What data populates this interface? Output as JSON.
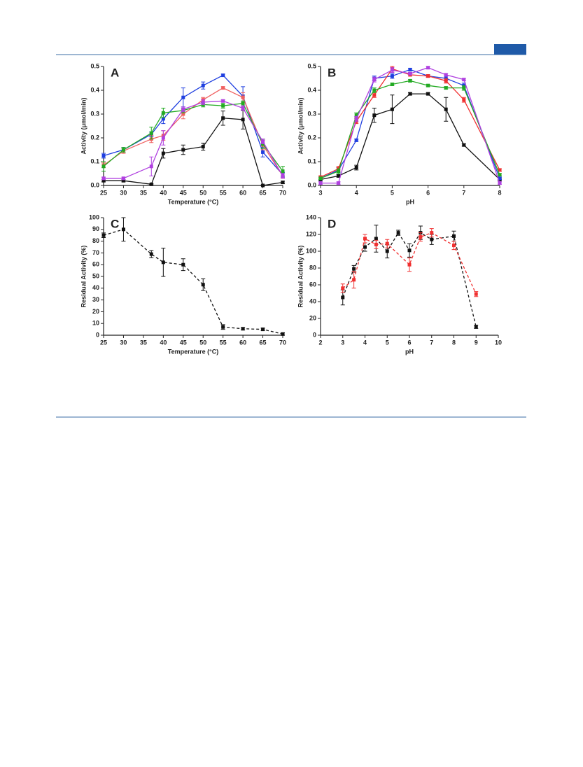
{
  "chart_data": [
    {
      "type": "line",
      "panel": "A",
      "xlabel": "Temperature (°C)",
      "ylabel": "Activity (μmol/min)",
      "xlim": [
        25,
        70
      ],
      "xticks": [
        25,
        30,
        35,
        40,
        45,
        50,
        55,
        60,
        65,
        70
      ],
      "ylim": [
        0,
        0.5
      ],
      "yticks": [
        {
          "value": 0,
          "label": "0.0"
        },
        0.1,
        0.2,
        0.3,
        0.4,
        0.5
      ],
      "linestyle": "solid",
      "x": [
        25,
        30,
        37,
        40,
        45,
        50,
        55,
        60,
        65,
        70
      ],
      "series": [
        {
          "color": "#111111",
          "values": [
            0.02,
            0.02,
            0.005,
            0.135,
            0.15,
            0.163,
            0.283,
            0.277,
            0.0,
            0.013
          ],
          "errors": [
            0.005,
            0.005,
            0.002,
            0.02,
            0.02,
            0.015,
            0.03,
            0.04,
            0.002,
            0.005
          ]
        },
        {
          "color": "#1f3fe0",
          "values": [
            0.125,
            0.15,
            0.215,
            0.28,
            0.37,
            0.42,
            0.463,
            0.375,
            0.14,
            0.045
          ],
          "errors": [
            0.01,
            0.01,
            0.01,
            0.02,
            0.04,
            0.015,
            0.005,
            0.04,
            0.02,
            0.01
          ]
        },
        {
          "color": "#f06060",
          "values": [
            0.085,
            0.145,
            0.195,
            0.21,
            0.3,
            0.36,
            0.41,
            0.37,
            0.17,
            0.04
          ],
          "errors": [
            0.01,
            0.01,
            0.015,
            0.02,
            0.02,
            0.01,
            0.005,
            0.02,
            0.02,
            0.01
          ]
        },
        {
          "color": "#22aa22",
          "values": [
            0.08,
            0.15,
            0.22,
            0.305,
            0.315,
            0.34,
            0.335,
            0.345,
            0.175,
            0.06
          ],
          "errors": [
            0.02,
            0.01,
            0.025,
            0.02,
            0.01,
            0.01,
            0.01,
            0.01,
            0.02,
            0.02
          ]
        },
        {
          "color": "#b040e0",
          "values": [
            0.03,
            0.03,
            0.08,
            0.2,
            0.32,
            0.35,
            0.355,
            0.325,
            0.185,
            0.04
          ],
          "errors": [
            0.005,
            0.005,
            0.04,
            0.03,
            0.01,
            0.01,
            0.005,
            0.01,
            0.01,
            0.01
          ]
        }
      ]
    },
    {
      "type": "line",
      "panel": "B",
      "xlabel": "pH",
      "ylabel": "Activity (μmol/min)",
      "xlim": [
        3,
        8
      ],
      "xticks": [
        3,
        4,
        5,
        6,
        7,
        8
      ],
      "ylim": [
        0,
        0.5
      ],
      "yticks": [
        {
          "value": 0,
          "label": "0.0"
        },
        0.1,
        0.2,
        0.3,
        0.4,
        0.5
      ],
      "linestyle": "solid",
      "x": [
        3,
        3.5,
        4,
        4.5,
        5,
        5.5,
        6,
        6.5,
        7,
        8
      ],
      "series": [
        {
          "color": "#111111",
          "values": [
            0.025,
            0.04,
            0.075,
            0.295,
            0.32,
            0.385,
            0.385,
            0.32,
            0.17,
            0.025
          ],
          "errors": [
            0.005,
            0.005,
            0.01,
            0.03,
            0.06,
            0.005,
            0.005,
            0.05,
            0.005,
            0.005
          ]
        },
        {
          "color": "#1f3fe0",
          "values": [
            0.03,
            0.065,
            0.19,
            0.45,
            0.46,
            0.487,
            0.46,
            0.45,
            0.42,
            0.03
          ],
          "errors": [
            0.005,
            0.01,
            0.005,
            0.01,
            0.01,
            0.005,
            0.005,
            0.01,
            0.01,
            0.005
          ]
        },
        {
          "color": "#f03030",
          "values": [
            0.035,
            0.07,
            0.27,
            0.38,
            0.49,
            0.465,
            0.46,
            0.44,
            0.36,
            0.065
          ],
          "errors": [
            0.005,
            0.01,
            0.01,
            0.01,
            0.01,
            0.005,
            0.005,
            0.01,
            0.01,
            0.005
          ]
        },
        {
          "color": "#22aa22",
          "values": [
            0.03,
            0.06,
            0.295,
            0.4,
            0.425,
            0.44,
            0.42,
            0.41,
            0.41,
            0.045
          ],
          "errors": [
            0.005,
            0.01,
            0.01,
            0.01,
            0.005,
            0.005,
            0.005,
            0.005,
            0.01,
            0.005
          ]
        },
        {
          "color": "#b040e0",
          "values": [
            0.01,
            0.01,
            0.28,
            0.445,
            0.485,
            0.47,
            0.495,
            0.465,
            0.445,
            0.01
          ],
          "errors": [
            0.005,
            0.005,
            0.01,
            0.01,
            0.01,
            0.005,
            0.005,
            0.005,
            0.005,
            0.005
          ]
        }
      ]
    },
    {
      "type": "line",
      "panel": "C",
      "xlabel": "Temperature (°C)",
      "ylabel": "Residual Activity (%)",
      "xlim": [
        25,
        70
      ],
      "xticks": [
        25,
        30,
        35,
        40,
        45,
        50,
        55,
        60,
        65,
        70
      ],
      "ylim": [
        0,
        100
      ],
      "yticks": [
        0,
        10,
        20,
        30,
        40,
        50,
        60,
        70,
        80,
        90,
        100
      ],
      "linestyle": "dashed",
      "x": [
        25,
        30,
        37,
        40,
        45,
        50,
        55,
        60,
        65,
        70
      ],
      "series": [
        {
          "color": "#111111",
          "values": [
            85,
            90,
            69,
            62,
            60,
            43,
            7,
            5.5,
            5,
            1
          ],
          "errors": [
            2,
            10,
            3,
            12,
            5,
            5,
            2,
            1,
            1,
            1
          ]
        }
      ]
    },
    {
      "type": "line",
      "panel": "D",
      "xlabel": "pH",
      "ylabel": "Residual Activity (%)",
      "xlim": [
        2,
        10
      ],
      "xticks": [
        2,
        3,
        4,
        5,
        6,
        7,
        8,
        9,
        10
      ],
      "ylim": [
        0,
        140
      ],
      "yticks": [
        0,
        20,
        40,
        60,
        80,
        100,
        120,
        140
      ],
      "linestyle": "dashed",
      "series": [
        {
          "color": "#111111",
          "x": [
            3,
            3.5,
            4,
            4.5,
            5,
            5.5,
            6,
            6.5,
            7,
            8,
            9
          ],
          "values": [
            45,
            79,
            105,
            115,
            100,
            122,
            101,
            122,
            114,
            118,
            10
          ],
          "errors": [
            9,
            4,
            5,
            16,
            8,
            3,
            8,
            8,
            6,
            6,
            2
          ]
        },
        {
          "color": "#f03030",
          "x": [
            3,
            3.5,
            4,
            4.5,
            5,
            6,
            6.5,
            7,
            8,
            9
          ],
          "values": [
            56,
            66,
            115,
            108,
            109,
            84,
            117,
            122,
            107,
            49
          ],
          "errors": [
            5,
            10,
            5,
            5,
            5,
            8,
            5,
            5,
            5,
            3
          ]
        }
      ]
    }
  ]
}
